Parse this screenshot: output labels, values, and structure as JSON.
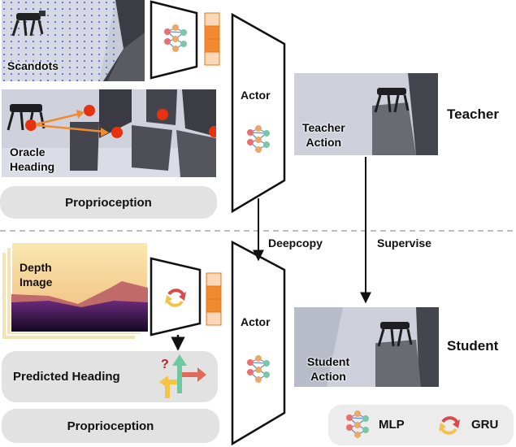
{
  "teacher": {
    "scandots_label": "Scandots",
    "oracle_heading_label": "Oracle\nHeading",
    "proprioception_label": "Proprioception",
    "actor_label": "Actor",
    "action_label": "Teacher\nAction",
    "row_label": "Teacher"
  },
  "student": {
    "depth_image_label": "Depth\nImage",
    "predicted_heading_label": "Predicted Heading",
    "proprioception_label": "Proprioception",
    "actor_label": "Actor",
    "action_label": "Student\nAction",
    "row_label": "Student"
  },
  "connections": {
    "deepcopy_label": "Deepcopy",
    "supervise_label": "Supervise"
  },
  "legend": {
    "mlp_label": "MLP",
    "gru_label": "GRU"
  },
  "heading_question_mark": "?",
  "colors": {
    "latent": "#f28a30",
    "latent_light": "#fbd9b8",
    "pill": "#e2e2e2",
    "terrain": "#c4c8d6",
    "dots": "#e8320f",
    "gru_red": "#d94a48",
    "gru_yellow": "#f2c24f",
    "arrow_green": "#6ec8a0",
    "arrow_red": "#e06a5a",
    "arrow_yellow": "#f5c542"
  }
}
